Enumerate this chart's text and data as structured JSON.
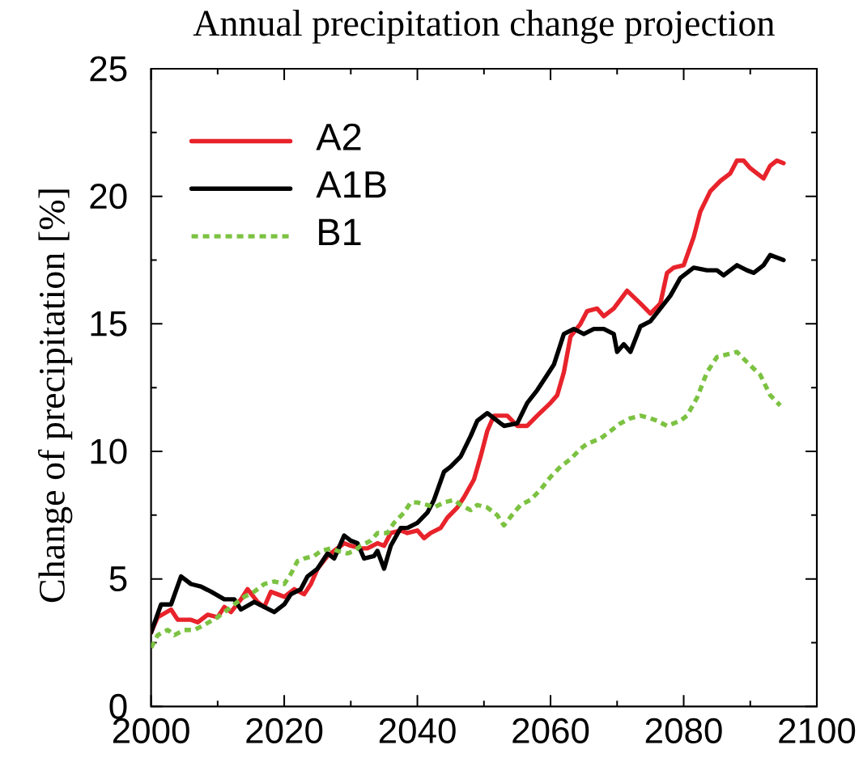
{
  "chart_data": {
    "type": "line",
    "title": "Annual precipitation change projection",
    "ylabel": "Change of precipitation [%]",
    "xlim": [
      2000,
      2100
    ],
    "ylim": [
      0,
      25
    ],
    "xticks": [
      2000,
      {
        "value": 2010,
        "label": null
      },
      2020,
      {
        "value": 2030,
        "label": null
      },
      2040,
      {
        "value": 2050,
        "label": null
      },
      2060,
      {
        "value": 2070,
        "label": null
      },
      2080,
      {
        "value": 2090,
        "label": null
      },
      2100
    ],
    "yticks": [
      0,
      {
        "value": 2.5,
        "label": null
      },
      5,
      {
        "value": 7.5,
        "label": null
      },
      10,
      {
        "value": 12.5,
        "label": null
      },
      15,
      {
        "value": 17.5,
        "label": null
      },
      20,
      {
        "value": 22.5,
        "label": null
      },
      25
    ],
    "legend": "top left",
    "series": [
      {
        "name": "A2",
        "color": "#e8232b",
        "line_style": "solid",
        "x": [
          2000,
          2001,
          2003,
          2004,
          2006,
          2007,
          2008.5,
          2010,
          2011,
          2012,
          2013.5,
          2014.5,
          2016,
          2017,
          2018,
          2019,
          2020,
          2021.5,
          2023,
          2024,
          2025,
          2026.5,
          2027.5,
          2029,
          2030,
          2031.5,
          2032.5,
          2034,
          2035,
          2036,
          2037.5,
          2038.5,
          2040,
          2041,
          2042,
          2043.5,
          2044.5,
          2046,
          2047,
          2048.5,
          2049.5,
          2050.5,
          2051.5,
          2053.5,
          2055,
          2056.5,
          2058,
          2060,
          2061,
          2062,
          2063,
          2064.5,
          2065.5,
          2067,
          2068,
          2069.5,
          2071.5,
          2073.5,
          2075,
          2076.5,
          2077.5,
          2078.5,
          2080,
          2081.5,
          2082.5,
          2084,
          2085.5,
          2087,
          2088,
          2089,
          2090,
          2092,
          2093,
          2094,
          2095
        ],
        "values": [
          2.9,
          3.5,
          3.8,
          3.4,
          3.4,
          3.3,
          3.6,
          3.5,
          3.9,
          3.7,
          4.2,
          4.6,
          4.1,
          3.9,
          4.5,
          4.4,
          4.3,
          4.6,
          4.4,
          4.8,
          5.4,
          5.9,
          6.1,
          6.4,
          6.3,
          6.2,
          6.2,
          6.4,
          6.3,
          6.8,
          6.9,
          6.8,
          6.9,
          6.6,
          6.8,
          7.0,
          7.4,
          7.8,
          8.2,
          8.9,
          9.8,
          10.8,
          11.4,
          11.4,
          11.0,
          11.0,
          11.4,
          11.9,
          12.2,
          13.1,
          14.5,
          15.0,
          15.5,
          15.6,
          15.3,
          15.6,
          16.3,
          15.8,
          15.4,
          15.8,
          17.0,
          17.2,
          17.3,
          18.4,
          19.4,
          20.2,
          20.6,
          20.9,
          21.4,
          21.4,
          21.1,
          20.7,
          21.2,
          21.4,
          21.3
        ]
      },
      {
        "name": "A1B",
        "color": "#000000",
        "line_style": "solid",
        "x": [
          2000,
          2001.5,
          2003,
          2004.5,
          2006,
          2007.5,
          2009,
          2011,
          2012.5,
          2013.5,
          2015.5,
          2017,
          2018.5,
          2020,
          2021,
          2022.5,
          2023.5,
          2025,
          2026.5,
          2027.5,
          2029,
          2030,
          2031,
          2032,
          2033.5,
          2034,
          2035,
          2036,
          2037.5,
          2038.5,
          2040,
          2041.5,
          2042.5,
          2044,
          2045,
          2046.5,
          2048,
          2049,
          2050.5,
          2052.5,
          2053,
          2055,
          2056.5,
          2058,
          2059,
          2060.5,
          2062,
          2063.5,
          2065,
          2066.5,
          2068,
          2069.5,
          2070,
          2071,
          2072,
          2073.5,
          2075,
          2076.5,
          2078,
          2079.5,
          2081.5,
          2083.5,
          2085,
          2086,
          2088,
          2089.5,
          2090.5,
          2092,
          2093,
          2095
        ],
        "values": [
          2.9,
          4.0,
          4.0,
          5.1,
          4.8,
          4.7,
          4.5,
          4.2,
          4.2,
          3.8,
          4.1,
          3.9,
          3.7,
          4.0,
          4.4,
          4.6,
          5.1,
          5.4,
          6.0,
          5.8,
          6.7,
          6.5,
          6.4,
          5.8,
          5.9,
          6.1,
          5.4,
          6.3,
          7.0,
          7.0,
          7.2,
          7.6,
          8.1,
          9.2,
          9.4,
          9.8,
          10.6,
          11.2,
          11.5,
          11.1,
          11.0,
          11.1,
          11.9,
          12.4,
          12.8,
          13.4,
          14.6,
          14.8,
          14.6,
          14.8,
          14.8,
          14.6,
          13.9,
          14.2,
          13.9,
          14.9,
          15.1,
          15.6,
          16.1,
          16.8,
          17.2,
          17.1,
          17.1,
          16.9,
          17.3,
          17.1,
          17.0,
          17.3,
          17.7,
          17.5
        ]
      },
      {
        "name": "B1",
        "color": "#7cc242",
        "line_style": "dotted",
        "x": [
          2000,
          2001,
          2002.5,
          2003.5,
          2005,
          2006.5,
          2008,
          2010,
          2011.5,
          2012.5,
          2014,
          2015.5,
          2017,
          2018.5,
          2020,
          2021,
          2022,
          2023,
          2024.5,
          2025.5,
          2027,
          2028,
          2029.5,
          2030.5,
          2031.5,
          2033,
          2034,
          2035.5,
          2036.5,
          2038,
          2039,
          2040,
          2041.5,
          2042.5,
          2044,
          2045.5,
          2046.5,
          2048,
          2049,
          2050.5,
          2052,
          2053,
          2054.5,
          2055.5,
          2057,
          2058.5,
          2060,
          2061.5,
          2063,
          2064.5,
          2065.5,
          2067.5,
          2069,
          2070.5,
          2072,
          2073.5,
          2075,
          2076,
          2077.5,
          2079.5,
          2080.5,
          2082,
          2083.5,
          2085,
          2086.5,
          2088,
          2089.5,
          2091.5,
          2093,
          2094.5
        ],
        "values": [
          2.3,
          2.8,
          3.0,
          2.8,
          3.0,
          3.0,
          3.2,
          3.5,
          3.8,
          4.0,
          4.3,
          4.5,
          4.8,
          4.9,
          4.8,
          5.2,
          5.7,
          5.8,
          5.9,
          6.1,
          6.2,
          6.1,
          6.0,
          6.1,
          6.3,
          6.5,
          6.8,
          6.8,
          7.2,
          7.6,
          8.0,
          8.0,
          7.9,
          7.8,
          8.0,
          8.1,
          7.9,
          7.7,
          7.9,
          7.8,
          7.5,
          7.1,
          7.6,
          7.9,
          8.1,
          8.5,
          9.0,
          9.4,
          9.7,
          10.1,
          10.3,
          10.5,
          10.8,
          11.1,
          11.3,
          11.4,
          11.3,
          11.2,
          11.0,
          11.2,
          11.4,
          12.1,
          13.1,
          13.7,
          13.8,
          13.9,
          13.5,
          13.0,
          12.2,
          11.8
        ]
      }
    ]
  }
}
